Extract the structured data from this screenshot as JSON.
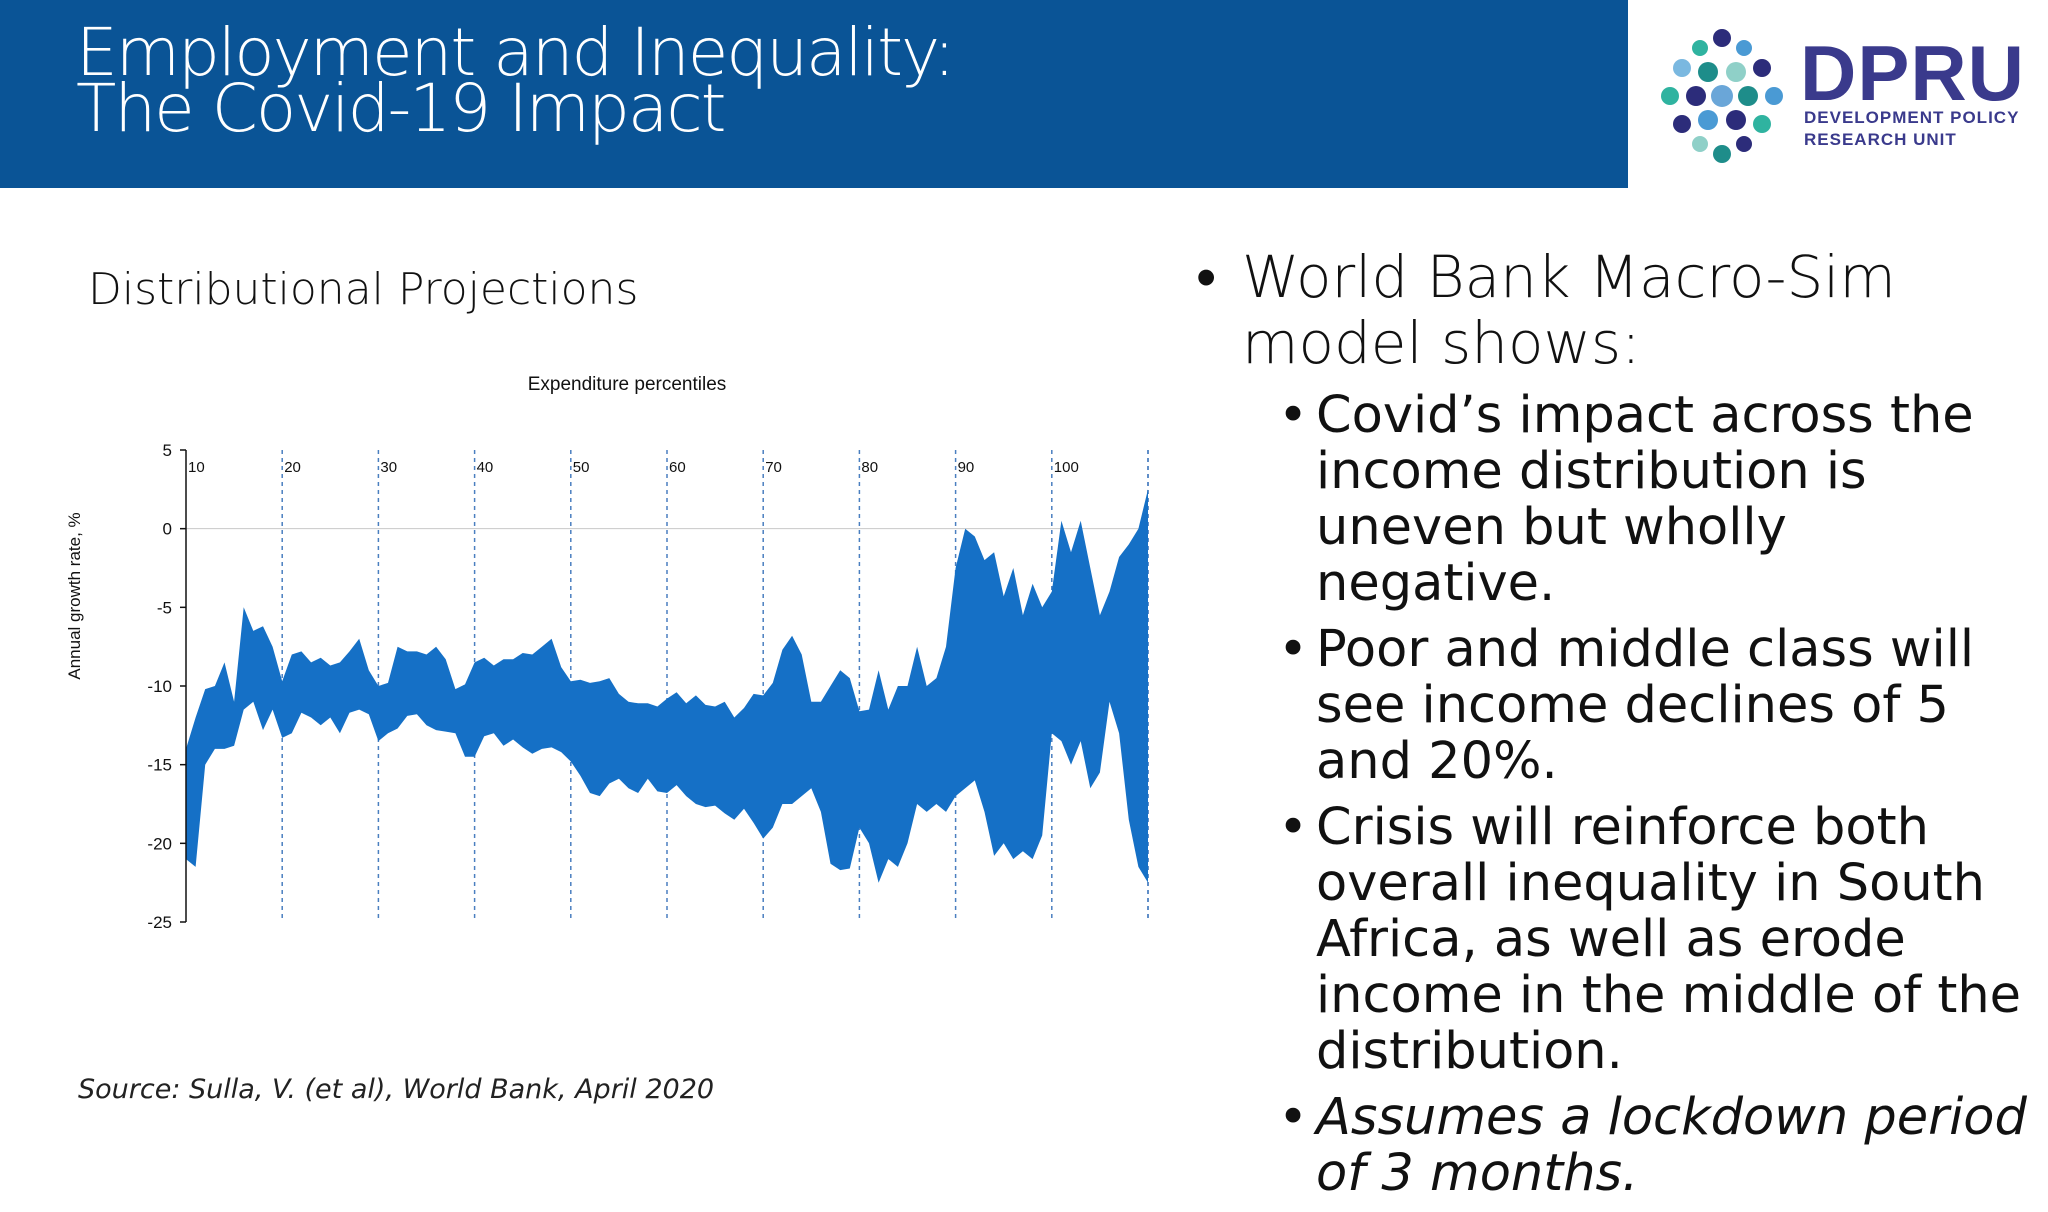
{
  "header": {
    "title_line1": "Employment and Inequality:",
    "title_line2": "The Covid-19 Impact",
    "bg_color": "#0a5496"
  },
  "logo": {
    "wordmark": "DPRU",
    "sub_line1": "DEVELOPMENT POLICY",
    "sub_line2": "RESEARCH UNIT"
  },
  "left": {
    "section_title": "Distributional Projections",
    "source": "Source: Sulla, V. (et al), World Bank, April 2020"
  },
  "chart_data": {
    "type": "area",
    "title": "Expenditure percentiles",
    "ylabel": "Annual growth rate, %",
    "ylim": [
      -25,
      5
    ],
    "yticks": [
      5,
      0,
      -5,
      -10,
      -15,
      -20,
      -25
    ],
    "xlim": [
      10,
      110
    ],
    "top_labels": [
      "10",
      "20",
      "30",
      "40",
      "50",
      "60",
      "70",
      "80",
      "90",
      "100"
    ],
    "band_color": "#1570c6",
    "x": [
      10,
      11,
      12,
      13,
      14,
      15,
      16,
      17,
      18,
      19,
      20,
      21,
      22,
      23,
      24,
      25,
      26,
      27,
      28,
      29,
      30,
      31,
      32,
      33,
      34,
      35,
      36,
      37,
      38,
      39,
      40,
      41,
      42,
      43,
      44,
      45,
      46,
      47,
      48,
      49,
      50,
      51,
      52,
      53,
      54,
      55,
      56,
      57,
      58,
      59,
      60,
      61,
      62,
      63,
      64,
      65,
      66,
      67,
      68,
      69,
      70,
      71,
      72,
      73,
      74,
      75,
      76,
      77,
      78,
      79,
      80,
      81,
      82,
      83,
      84,
      85,
      86,
      87,
      88,
      89,
      90,
      91,
      92,
      93,
      94,
      95,
      96,
      97,
      98,
      99,
      100,
      101,
      102,
      103,
      104,
      105,
      106,
      107,
      108,
      109,
      110
    ],
    "series": [
      {
        "name": "upper",
        "values": [
          -14,
          -12,
          -10.2,
          -10,
          -8.5,
          -11,
          -5,
          -6.5,
          -6.2,
          -7.5,
          -9.7,
          -8,
          -7.8,
          -8.5,
          -8.2,
          -8.7,
          -8.5,
          -7.8,
          -7,
          -9,
          -10,
          -9.8,
          -7.5,
          -7.8,
          -7.8,
          -8,
          -7.5,
          -8.3,
          -10.2,
          -9.9,
          -8.5,
          -8.2,
          -8.7,
          -8.3,
          -8.3,
          -7.9,
          -8,
          -7.5,
          -7,
          -8.8,
          -9.7,
          -9.6,
          -9.8,
          -9.7,
          -9.5,
          -10.5,
          -11,
          -11.1,
          -11.1,
          -11.3,
          -10.8,
          -10.4,
          -11.1,
          -10.6,
          -11.2,
          -11.3,
          -11,
          -12,
          -11.4,
          -10.5,
          -10.6,
          -9.8,
          -7.7,
          -6.8,
          -8,
          -11,
          -11,
          -10,
          -9,
          -9.5,
          -11.6,
          -11.5,
          -9,
          -11.5,
          -10,
          -10,
          -7.5,
          -10,
          -9.5,
          -7.5,
          -2.5,
          0,
          -0.5,
          -2,
          -1.5,
          -4.3,
          -2.5,
          -5.5,
          -3.5,
          -5,
          -4,
          0.5,
          -1.5,
          0.5,
          -2.5,
          -5.5,
          -4,
          -1.8,
          -1,
          0,
          2.5
        ],
        "note": "top edge of band"
      },
      {
        "name": "lower",
        "values": [
          -21,
          -21.5,
          -15,
          -14,
          -14,
          -13.8,
          -11.5,
          -11,
          -12.8,
          -11.5,
          -13.3,
          -13,
          -11.7,
          -12,
          -12.5,
          -12,
          -13,
          -11.7,
          -11.5,
          -11.8,
          -13.5,
          -13,
          -12.7,
          -11.9,
          -11.8,
          -12.5,
          -12.8,
          -12.9,
          -13,
          -14.5,
          -14.5,
          -13.2,
          -13,
          -13.8,
          -13.4,
          -13.9,
          -14.3,
          -14,
          -13.9,
          -14.2,
          -14.8,
          -15.7,
          -16.8,
          -17,
          -16.2,
          -15.9,
          -16.5,
          -16.8,
          -15.9,
          -16.7,
          -16.8,
          -16.3,
          -17,
          -17.5,
          -17.7,
          -17.6,
          -18.1,
          -18.5,
          -17.8,
          -18.7,
          -19.7,
          -19,
          -17.5,
          -17.5,
          -17,
          -16.5,
          -18,
          -21.3,
          -21.7,
          -21.6,
          -19,
          -20,
          -22.5,
          -21,
          -21.5,
          -20,
          -17.5,
          -18,
          -17.5,
          -18,
          -17,
          -16.5,
          -16,
          -18,
          -20.8,
          -20,
          -21,
          -20.5,
          -21,
          -19.5,
          -13,
          -13.5,
          -15,
          -13.5,
          -16.5,
          -15.5,
          -11,
          -13,
          -18.5,
          -21.5,
          -22.5
        ],
        "note": "bottom edge of band"
      }
    ]
  },
  "bullets": {
    "main": "World Bank Macro-Sim model shows:",
    "subs": [
      {
        "text": "Covid’s impact across the income distribution is uneven but wholly negative.",
        "italic": false
      },
      {
        "text": "Poor and middle class will see income declines of 5 and 20%.",
        "italic": false
      },
      {
        "text": "Crisis will reinforce both overall inequality in South Africa, as well as erode income in the middle of the distribution.",
        "italic": false
      },
      {
        "text": "Assumes a lockdown period of 3 months.",
        "italic": true
      }
    ]
  }
}
